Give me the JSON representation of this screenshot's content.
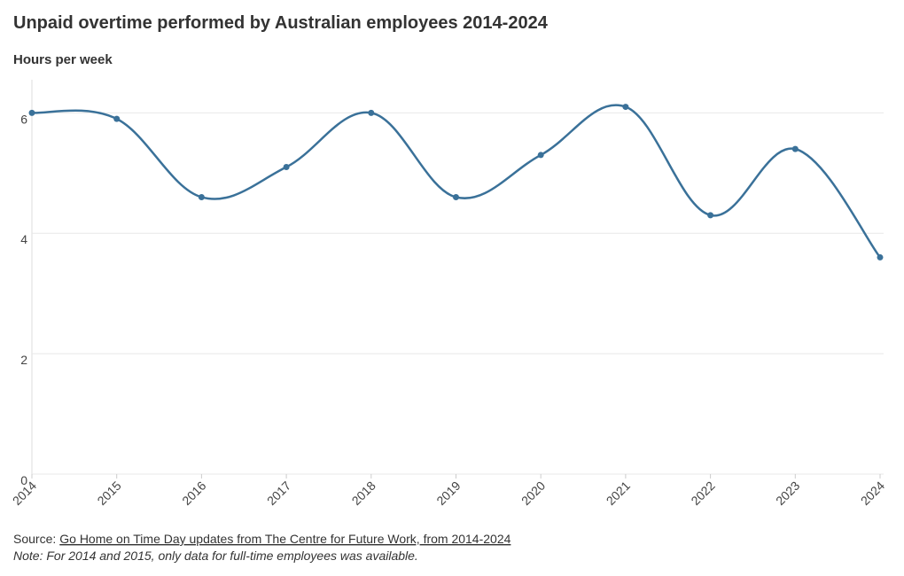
{
  "chart_data": {
    "type": "line",
    "title": "Unpaid overtime performed by Australian employees 2014-2024",
    "y_label": "Hours per week",
    "x": [
      2014,
      2015,
      2016,
      2017,
      2018,
      2019,
      2020,
      2021,
      2022,
      2023,
      2024
    ],
    "values": [
      6.0,
      5.9,
      4.6,
      5.1,
      6.0,
      4.6,
      5.3,
      6.1,
      4.3,
      5.4,
      3.6
    ],
    "color": "#3a7199",
    "xlim": [
      2014,
      2024
    ],
    "xticks": [
      2014,
      2015,
      2016,
      2017,
      2018,
      2019,
      2020,
      2021,
      2022,
      2023,
      2024
    ],
    "ylim": [
      0,
      6.55
    ],
    "yticks": [
      0,
      2,
      4,
      6
    ],
    "grid": true,
    "source_label": "Source:",
    "source_link": "Go Home on Time Day updates from The Centre for Future Work, from 2014-2024",
    "note": "Note: For 2014 and 2015, only data for full-time employees was available."
  }
}
